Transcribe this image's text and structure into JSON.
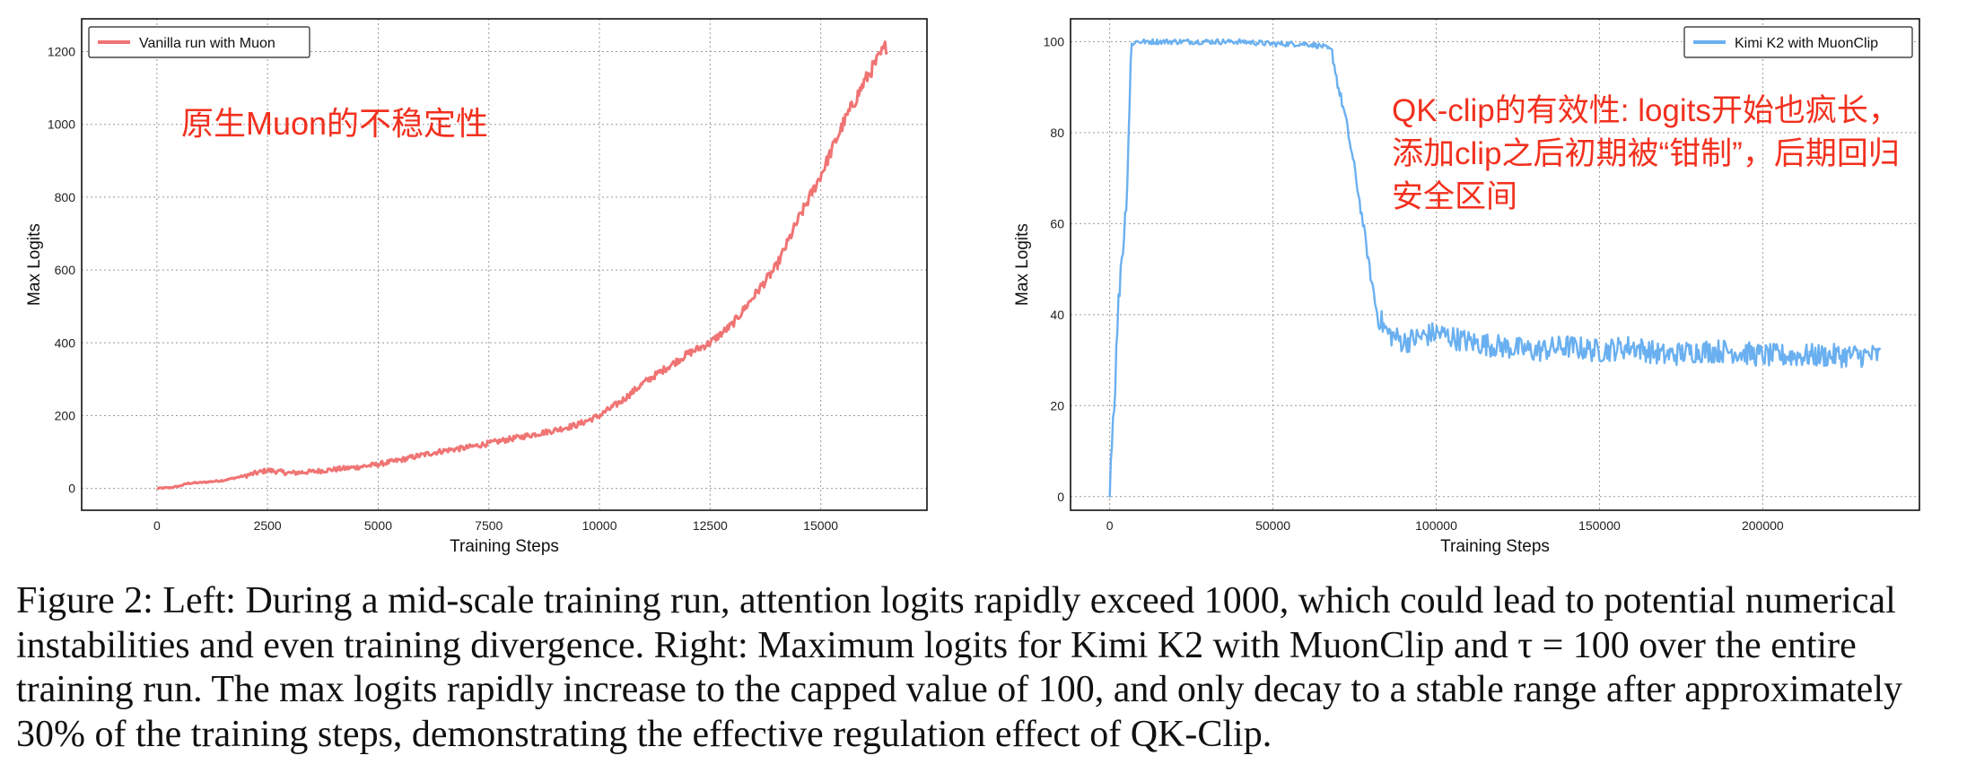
{
  "chart_data": [
    {
      "type": "line",
      "title": "",
      "xlabel": "Training Steps",
      "ylabel": "Max Logits",
      "xlim": [
        -1700,
        17400
      ],
      "ylim": [
        -60,
        1290
      ],
      "grid": true,
      "legend_position": "top-left",
      "xticks": [
        0,
        2500,
        5000,
        7500,
        10000,
        12500,
        15000
      ],
      "yticks": [
        0,
        200,
        400,
        600,
        800,
        1000,
        1200
      ],
      "annotation": "原生Muon的不稳定性",
      "series": [
        {
          "name": "Vanilla run with Muon",
          "color": "#f07474",
          "x": [
            0,
            300,
            500,
            700,
            1000,
            1500,
            2000,
            2500,
            3000,
            3500,
            4000,
            4500,
            5000,
            5500,
            6000,
            6500,
            7000,
            7500,
            8000,
            8500,
            9000,
            9500,
            10000,
            10500,
            11000,
            11500,
            12000,
            12500,
            13000,
            13500,
            14000,
            14500,
            15000,
            15500,
            16000,
            16500
          ],
          "y": [
            0,
            2,
            6,
            14,
            16,
            22,
            35,
            50,
            42,
            46,
            52,
            58,
            66,
            78,
            92,
            104,
            112,
            124,
            136,
            148,
            160,
            175,
            200,
            240,
            290,
            330,
            370,
            400,
            450,
            530,
            610,
            740,
            860,
            1000,
            1120,
            1220
          ]
        }
      ]
    },
    {
      "type": "line",
      "title": "",
      "xlabel": "Training Steps",
      "ylabel": "Max Logits",
      "xlim": [
        -12000,
        248000
      ],
      "ylim": [
        -3,
        105
      ],
      "grid": true,
      "legend_position": "top-right",
      "xticks": [
        0,
        50000,
        100000,
        150000,
        200000
      ],
      "yticks": [
        0,
        20,
        40,
        60,
        80,
        100
      ],
      "annotation": "QK-clip的有效性: logits开始也疯长，添加clip之后初期被“钳制”，后期回归安全区间",
      "series": [
        {
          "name": "Kimi K2 with MuonClip",
          "color": "#6ab0f0",
          "x": [
            0,
            500,
            1500,
            2500,
            3500,
            4500,
            5500,
            6500,
            7500,
            10000,
            20000,
            30000,
            40000,
            50000,
            60000,
            65000,
            68000,
            70000,
            72000,
            75000,
            78000,
            80000,
            82000,
            85000,
            90000,
            95000,
            100000,
            110000,
            120000,
            130000,
            140000,
            150000,
            160000,
            170000,
            180000,
            190000,
            200000,
            210000,
            220000,
            230000,
            236000
          ],
          "y": [
            0,
            12,
            22,
            40,
            52,
            58,
            72,
            98,
            100,
            100,
            100,
            100,
            100,
            99.5,
            99.5,
            99,
            98,
            90,
            84,
            72,
            58,
            48,
            40,
            36,
            34,
            35,
            36,
            34,
            33,
            32,
            33,
            32,
            33,
            31,
            32,
            32,
            31,
            31,
            31,
            31,
            31
          ]
        }
      ]
    }
  ],
  "caption": "Figure 2: Left: During a mid-scale training run, attention logits rapidly exceed 1000, which could lead to potential numerical instabilities and even training divergence. Right: Maximum logits for Kimi K2 with MuonClip and τ = 100 over the entire training run. The max logits rapidly increase to the capped value of 100, and only decay to a stable range after approximately 30% of the training steps, demonstrating the effective regulation effect of QK-Clip."
}
